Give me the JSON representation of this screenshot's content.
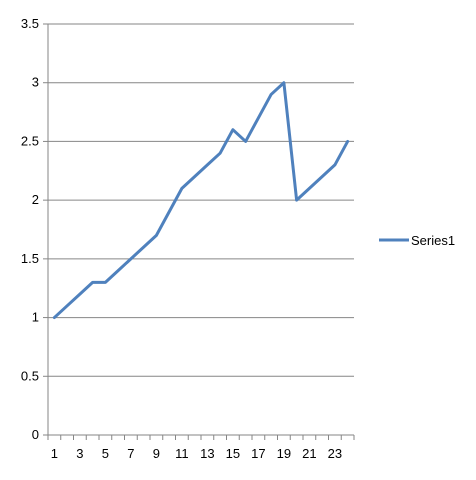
{
  "chart_data": {
    "type": "line",
    "x": [
      1,
      2,
      3,
      4,
      5,
      6,
      7,
      8,
      9,
      10,
      11,
      12,
      13,
      14,
      15,
      16,
      17,
      18,
      19,
      20,
      21,
      22,
      23,
      24
    ],
    "x_tick_labels": [
      "1",
      "3",
      "5",
      "7",
      "9",
      "11",
      "13",
      "15",
      "17",
      "19",
      "21",
      "23"
    ],
    "y_tick_labels": [
      "0",
      "0.5",
      "1",
      "1.5",
      "2",
      "2.5",
      "3",
      "3.5"
    ],
    "ylim": [
      0,
      3.5
    ],
    "grid": "horizontal",
    "legend_position": "right",
    "series": [
      {
        "name": "Series1",
        "color": "#4F81BD",
        "values": [
          1.0,
          1.1,
          1.2,
          1.3,
          1.3,
          1.4,
          1.5,
          1.6,
          1.7,
          1.9,
          2.1,
          2.2,
          2.3,
          2.4,
          2.6,
          2.5,
          2.7,
          2.9,
          3.0,
          2.0,
          2.1,
          2.2,
          2.3,
          2.5
        ]
      }
    ]
  }
}
